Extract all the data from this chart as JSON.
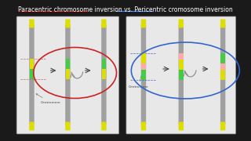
{
  "bg_color": "#1a1a1a",
  "panel_bg": "#e8e8e8",
  "title": "Paracentric chromosome inversion vs. Pericentric cromosome inversion",
  "title_color": "#ffffff",
  "title_fontsize": 5.5,
  "paracentric_underline_color": "#cc0000",
  "pericentric_underline_color": "#4488ff",
  "chr_gray": "#a0a0a0",
  "chr_yellow": "#dddd00",
  "chr_green": "#44cc44",
  "chr_pink": "#ffaaaa",
  "ellipse_red": "#cc2222",
  "ellipse_blue": "#3366cc",
  "arrow_color": "#888888",
  "centromere_label_color": "#444444"
}
